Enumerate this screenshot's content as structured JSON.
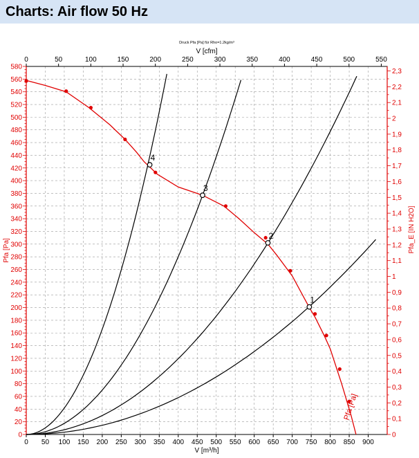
{
  "page": {
    "title": "Charts: Air flow 50 Hz"
  },
  "colors": {
    "header_bg": "#d6e4f5",
    "pressure_curve": "#e00000",
    "system_curves": "#000000",
    "grid": "#9a9a9a",
    "axis_red": "#e00000"
  },
  "chart_data": {
    "type": "line",
    "title": "Druck Pfa [Pa] für Rho=1.2kg/m^3",
    "xlabel": "V [m^3/h]",
    "x2label": "V [cfm]",
    "ylabel": "Pfa [Pa]",
    "y2label": "Pfa_E [IN H2O]",
    "xlim": [
      0,
      950
    ],
    "ylim": [
      0,
      580
    ],
    "x_ticks": [
      "0",
      "50",
      "100",
      "150",
      "200",
      "250",
      "300",
      "350",
      "400",
      "450",
      "500",
      "550",
      "600",
      "650",
      "700",
      "750",
      "800",
      "850",
      "900"
    ],
    "y_ticks": [
      "0",
      "20",
      "40",
      "60",
      "80",
      "100",
      "120",
      "140",
      "160",
      "180",
      "200",
      "220",
      "240",
      "260",
      "280",
      "300",
      "320",
      "340",
      "360",
      "380",
      "400",
      "420",
      "440",
      "460",
      "480",
      "500",
      "520",
      "540",
      "560",
      "580"
    ],
    "x2_ticks": [
      "0",
      "50",
      "100",
      "150",
      "200",
      "250",
      "300",
      "350",
      "400",
      "450",
      "500",
      "550"
    ],
    "y2_ticks": [
      "0",
      "0,1",
      "0,2",
      "0,3",
      "0,4",
      "0,5",
      "0,6",
      "0,7",
      "0,8",
      "0,9",
      "1",
      "1,1",
      "1,2",
      "1,3",
      "1,4",
      "1,5",
      "1,6",
      "1,7",
      "1,8",
      "1,9",
      "2",
      "2,1",
      "2,2",
      "2,3"
    ],
    "grid": true,
    "series": [
      {
        "name": "Pfa [Pa]",
        "x": [
          0,
          50,
          105,
          165,
          220,
          260,
          290,
          310,
          345,
          400,
          464,
          520,
          560,
          600,
          620,
          636,
          660,
          700,
          745,
          760,
          785,
          800,
          830,
          855,
          868
        ],
        "y": [
          558,
          550,
          540,
          515,
          488,
          465,
          445,
          430,
          410,
          390,
          377,
          360,
          340,
          318,
          308,
          300,
          282,
          250,
          200,
          185,
          155,
          135,
          80,
          30,
          0
        ],
        "markers_x": [
          0,
          105,
          170,
          260,
          340,
          525,
          630,
          695,
          760,
          790,
          825,
          850
        ],
        "markers_y": [
          557,
          541,
          515,
          465,
          413,
          360,
          310,
          258,
          190,
          156,
          103,
          52
        ]
      }
    ],
    "system_curves": [
      {
        "label": "1",
        "k": 0.000363,
        "x_end": 920,
        "op_x": 745,
        "op_y": 201
      },
      {
        "label": "2",
        "k": 0.000746,
        "x_end": 870,
        "op_x": 636,
        "op_y": 302
      },
      {
        "label": "3",
        "k": 0.00175,
        "x_end": 565,
        "op_x": 464,
        "op_y": 377
      },
      {
        "label": "4",
        "k": 0.00415,
        "x_end": 370,
        "op_x": 325,
        "op_y": 425
      }
    ],
    "annotations": {
      "curve_label": "Pfa [Pa]"
    }
  }
}
